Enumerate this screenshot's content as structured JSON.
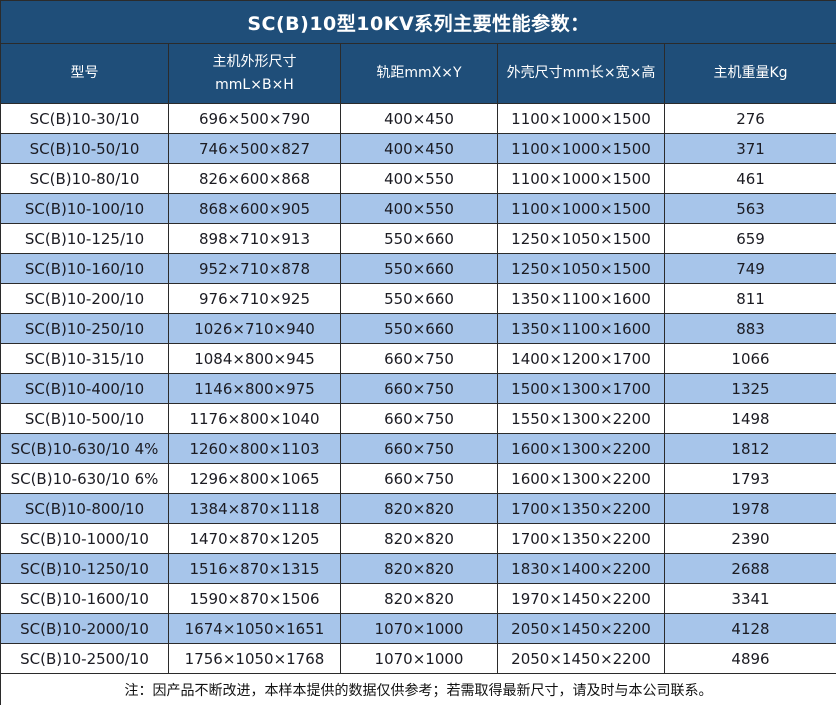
{
  "title": "SC(B)10型10KV系列主要性能参数：",
  "footer_note": "注：因产品不断改进，本样本提供的数据仅供参考；若需取得最新尺寸，请及时与本公司联系。",
  "colors": {
    "header_bg": "#1F4E79",
    "alt_row_bg": "#A7C5EA",
    "border": "#2B2B2B",
    "header_text": "#FFFFFF",
    "body_text": "#1B1B22"
  },
  "table": {
    "columns": [
      {
        "name": "model",
        "label": "型号"
      },
      {
        "name": "host-dimensions",
        "label": "主机外形尺寸",
        "label2": "mmL×B×H"
      },
      {
        "name": "rail-gauge",
        "label": "轨距mmX×Y"
      },
      {
        "name": "enclosure-size",
        "label": "外壳尺寸mm长×宽×高"
      },
      {
        "name": "weight",
        "label": "主机重量Kg"
      }
    ],
    "rows": [
      [
        "SC(B)10-30/10",
        "696×500×790",
        "400×450",
        "1100×1000×1500",
        "276"
      ],
      [
        "SC(B)10-50/10",
        "746×500×827",
        "400×450",
        "1100×1000×1500",
        "371"
      ],
      [
        "SC(B)10-80/10",
        "826×600×868",
        "400×550",
        "1100×1000×1500",
        "461"
      ],
      [
        "SC(B)10-100/10",
        "868×600×905",
        "400×550",
        "1100×1000×1500",
        "563"
      ],
      [
        "SC(B)10-125/10",
        "898×710×913",
        "550×660",
        "1250×1050×1500",
        "659"
      ],
      [
        "SC(B)10-160/10",
        "952×710×878",
        "550×660",
        "1250×1050×1500",
        "749"
      ],
      [
        "SC(B)10-200/10",
        "976×710×925",
        "550×660",
        "1350×1100×1600",
        "811"
      ],
      [
        "SC(B)10-250/10",
        "1026×710×940",
        "550×660",
        "1350×1100×1600",
        "883"
      ],
      [
        "SC(B)10-315/10",
        "1084×800×945",
        "660×750",
        "1400×1200×1700",
        "1066"
      ],
      [
        "SC(B)10-400/10",
        "1146×800×975",
        "660×750",
        "1500×1300×1700",
        "1325"
      ],
      [
        "SC(B)10-500/10",
        "1176×800×1040",
        "660×750",
        "1550×1300×2200",
        "1498"
      ],
      [
        "SC(B)10-630/10 4%",
        "1260×800×1103",
        "660×750",
        "1600×1300×2200",
        "1812"
      ],
      [
        "SC(B)10-630/10 6%",
        "1296×800×1065",
        "660×750",
        "1600×1300×2200",
        "1793"
      ],
      [
        "SC(B)10-800/10",
        "1384×870×1118",
        "820×820",
        "1700×1350×2200",
        "1978"
      ],
      [
        "SC(B)10-1000/10",
        "1470×870×1205",
        "820×820",
        "1700×1350×2200",
        "2390"
      ],
      [
        "SC(B)10-1250/10",
        "1516×870×1315",
        "820×820",
        "1830×1400×2200",
        "2688"
      ],
      [
        "SC(B)10-1600/10",
        "1590×870×1506",
        "820×820",
        "1970×1450×2200",
        "3341"
      ],
      [
        "SC(B)10-2000/10",
        "1674×1050×1651",
        "1070×1000",
        "2050×1450×2200",
        "4128"
      ],
      [
        "SC(B)10-2500/10",
        "1756×1050×1768",
        "1070×1000",
        "2050×1450×2200",
        "4896"
      ]
    ]
  }
}
